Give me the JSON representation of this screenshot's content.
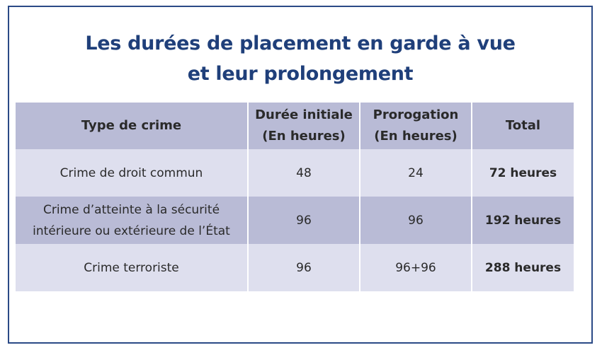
{
  "title": {
    "line1": "Les durées de placement en garde à vue",
    "line2": "et leur prolongement"
  },
  "table": {
    "headers": [
      {
        "line1": "Type de crime",
        "line2": ""
      },
      {
        "line1": "Durée initiale",
        "line2": "(En heures)"
      },
      {
        "line1": "Prorogation",
        "line2": "(En heures)"
      },
      {
        "line1": "Total",
        "line2": ""
      }
    ],
    "rows": [
      {
        "crime_line1": "Crime de droit commun",
        "crime_line2": "",
        "initial": "48",
        "prorogation": "24",
        "total": "72 heures"
      },
      {
        "crime_line1": "Crime d’atteinte à la sécurité",
        "crime_line2": "intérieure ou extérieure de l’État",
        "initial": "96",
        "prorogation": "96",
        "total": "192 heures"
      },
      {
        "crime_line1": "Crime terroriste",
        "crime_line2": "",
        "initial": "96",
        "prorogation": "96+96",
        "total": "288 heures"
      }
    ]
  },
  "colors": {
    "border": "#2b4a86",
    "title": "#1f3f7a",
    "header_bg": "#b9bbd6",
    "row_light": "#dedfee",
    "row_dark": "#b9bbd6"
  }
}
